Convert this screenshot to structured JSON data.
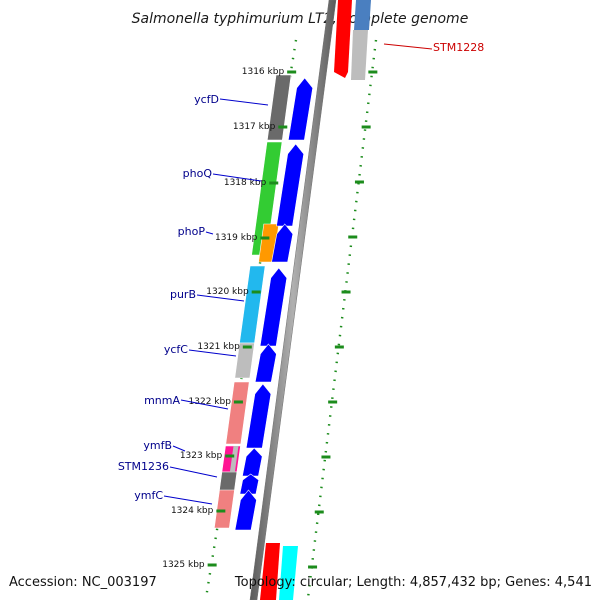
{
  "title": "Salmonella typhimurium LT2, complete genome",
  "footer": {
    "accession": "Accession: NC_003197",
    "topology": "Topology: circular; Length: 4,857,432 bp; Genes: 4,541"
  },
  "colors": {
    "background": "#ffffff",
    "backbone": "#808080",
    "tick_green": "#1c8c1c",
    "label_blue": "#00008b",
    "label_red": "#cc0000",
    "cds_blue": "#0000ff"
  },
  "scale_ticks": [
    {
      "label": "1316 kbp"
    },
    {
      "label": "1317 kbp"
    },
    {
      "label": "1318 kbp"
    },
    {
      "label": "1319 kbp"
    },
    {
      "label": "1320 kbp"
    },
    {
      "label": "1321 kbp"
    },
    {
      "label": "1322 kbp"
    },
    {
      "label": "1323 kbp"
    },
    {
      "label": "1324 kbp"
    },
    {
      "label": "1325 kbp"
    }
  ],
  "genes": [
    {
      "name": "ycfD",
      "color": "#6a6a6a"
    },
    {
      "name": "phoQ",
      "color": "#33cc33"
    },
    {
      "name": "phoP",
      "color": "#ff9900"
    },
    {
      "name": "purB",
      "color": "#22b8ee"
    },
    {
      "name": "ycfC",
      "color": "#bdbdbd"
    },
    {
      "name": "mnmA",
      "color": "#f08080"
    },
    {
      "name": "ymfB",
      "color": "#ff1493"
    },
    {
      "name": "STM1236",
      "color": "#6a6a6a"
    },
    {
      "name": "ymfC",
      "color": "#f08080"
    }
  ],
  "other_strand_genes": [
    {
      "name": "STM1228",
      "color": "#ff0000"
    }
  ]
}
